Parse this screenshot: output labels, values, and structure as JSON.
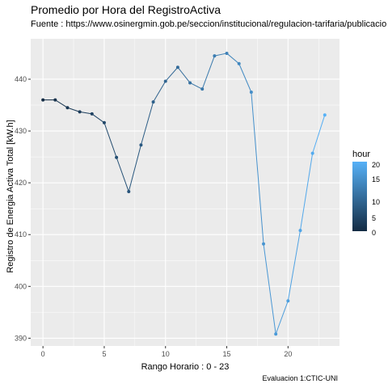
{
  "chart_data": {
    "type": "line",
    "title": "Promedio por Hora del RegistroActiva",
    "subtitle": "Fuente : https://www.osinergmin.gob.pe/seccion/institucional/regulacion-tarifaria/publicacio",
    "xlabel": "Rango Horario : 0 - 23",
    "ylabel": "Registro de Energia Activa Total [kW.h]",
    "caption": "Evaluacion 1:CTIC-UNI",
    "x": [
      0,
      1,
      2,
      3,
      4,
      5,
      6,
      7,
      8,
      9,
      10,
      11,
      12,
      13,
      14,
      15,
      16,
      17,
      18,
      19,
      20,
      21,
      22,
      23
    ],
    "y": [
      436.0,
      436.0,
      434.5,
      433.7,
      433.3,
      431.6,
      424.9,
      418.3,
      427.3,
      435.6,
      439.6,
      442.3,
      439.3,
      438.1,
      444.5,
      445.0,
      443.0,
      437.5,
      408.2,
      390.8,
      397.2,
      410.8,
      425.7,
      433.1
    ],
    "xlim": [
      -1,
      24.2
    ],
    "ylim": [
      388.5,
      447.8
    ],
    "xticks": [
      "0",
      "5",
      "10",
      "15",
      "20"
    ],
    "yticks": [
      "390",
      "400",
      "410",
      "420",
      "430",
      "440"
    ],
    "grid": true,
    "legend": {
      "title": "hour",
      "position": "right",
      "ticks": [
        "20",
        "15",
        "10",
        "5",
        "0"
      ],
      "color_low": "#132B43",
      "color_high": "#56B1F7"
    },
    "panel_background": "#EBEBEB",
    "grid_color": "#FFFFFF"
  }
}
